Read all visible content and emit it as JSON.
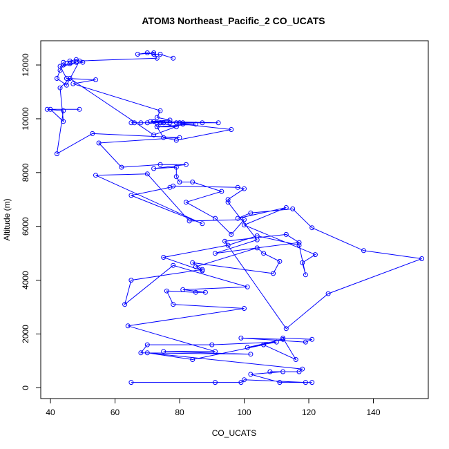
{
  "chart_data": {
    "type": "line",
    "title": "ATOM3 Northeast_Pacific_2 CO_UCATS",
    "xlabel": "CO_UCATS",
    "ylabel": "Altitude (m)",
    "xlim": [
      37,
      157
    ],
    "ylim": [
      -400,
      12900
    ],
    "xticks": [
      40,
      60,
      80,
      100,
      120,
      140
    ],
    "yticks": [
      0,
      2000,
      4000,
      6000,
      8000,
      10000,
      12000
    ],
    "grid": false,
    "series_color": "#0000ff",
    "x": [
      65,
      91,
      99,
      100,
      119,
      121,
      111,
      102,
      112,
      108,
      117,
      118,
      70,
      84,
      106,
      116,
      112,
      121,
      119,
      99,
      112,
      101,
      110,
      90,
      70,
      68,
      102,
      75,
      91,
      64,
      100,
      78,
      76,
      85,
      88,
      81,
      101,
      78,
      63,
      65,
      87,
      84,
      109,
      111,
      106,
      104,
      85,
      87,
      75,
      95,
      104,
      117,
      119,
      118,
      122,
      100,
      113,
      98,
      102,
      115,
      121,
      137,
      155,
      126,
      113,
      94,
      113,
      117,
      91,
      104,
      95,
      95,
      100,
      98,
      78,
      77,
      65,
      87,
      54,
      70,
      83,
      100,
      96,
      91,
      82,
      93,
      84,
      80,
      79,
      79,
      72,
      82,
      74,
      62,
      55,
      80,
      53,
      42,
      44,
      39,
      49,
      40,
      44,
      43,
      46,
      72,
      81,
      96,
      79,
      75,
      73,
      72,
      85,
      73,
      79,
      72,
      92,
      79,
      75,
      80,
      77,
      74,
      74,
      74,
      87,
      81,
      65,
      80,
      66,
      68,
      70,
      73,
      71,
      77,
      73,
      74,
      47,
      54,
      45,
      43,
      50,
      48,
      44,
      46,
      48,
      46,
      44,
      43,
      42,
      45,
      49,
      73,
      72,
      67,
      70,
      72,
      74,
      78
    ],
    "y": [
      200,
      200,
      200,
      300,
      200,
      200,
      200,
      500,
      600,
      600,
      600,
      700,
      1300,
      1050,
      1600,
      1050,
      1850,
      1800,
      1700,
      1850,
      1800,
      1500,
      1700,
      1600,
      1600,
      1300,
      1250,
      1350,
      1350,
      2300,
      2950,
      3100,
      3600,
      3550,
      3550,
      3650,
      3750,
      4550,
      3100,
      4000,
      4400,
      4650,
      4250,
      4700,
      5000,
      5200,
      4500,
      4350,
      4850,
      5300,
      5650,
      5300,
      4200,
      4650,
      4950,
      6050,
      6700,
      6300,
      6500,
      6650,
      5950,
      5100,
      4800,
      3500,
      2200,
      5450,
      5700,
      5400,
      5000,
      5500,
      6900,
      7000,
      7400,
      7450,
      7500,
      7450,
      7150,
      6100,
      7900,
      7950,
      6200,
      6250,
      5700,
      6300,
      6900,
      7300,
      7650,
      7650,
      7850,
      8200,
      8150,
      8300,
      8300,
      8200,
      9100,
      9300,
      9450,
      8700,
      10300,
      10350,
      10350,
      10350,
      9900,
      11150,
      11500,
      9400,
      9800,
      9600,
      9200,
      9300,
      9700,
      9900,
      9800,
      9700,
      9700,
      9900,
      9850,
      9850,
      9850,
      9850,
      9850,
      9850,
      9850,
      9850,
      9850,
      9850,
      9850,
      9850,
      9850,
      9850,
      9850,
      9850,
      9900,
      9950,
      10050,
      10300,
      11300,
      11450,
      11500,
      11950,
      12100,
      12200,
      12100,
      12150,
      12100,
      12050,
      12000,
      11800,
      11500,
      11250,
      12150,
      12250,
      12450,
      12400,
      12450,
      12400,
      12400,
      12250
    ]
  }
}
